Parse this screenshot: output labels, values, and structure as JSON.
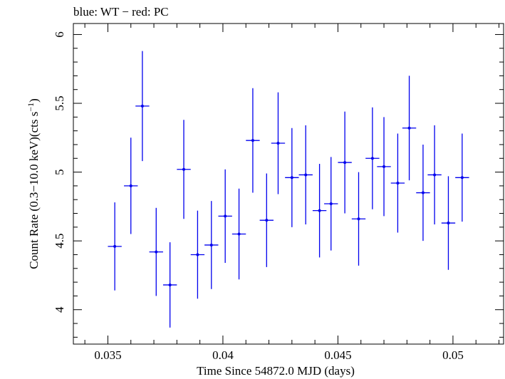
{
  "chart_data": {
    "type": "scatter",
    "title": "blue: WT − red: PC",
    "xlabel": "Time Since 54872.0 MJD (days)",
    "ylabel_main": "Count Rate (0.3−10.0 keV)(cts s",
    "ylabel_sup": "−1",
    "ylabel_end": ")",
    "xlim": [
      0.0335,
      0.0522
    ],
    "ylim": [
      3.75,
      6.08
    ],
    "xticks": [
      {
        "value": 0.035,
        "label": "0.035"
      },
      {
        "value": 0.04,
        "label": "0.04"
      },
      {
        "value": 0.045,
        "label": "0.045"
      },
      {
        "value": 0.05,
        "label": "0.05"
      }
    ],
    "yticks": [
      {
        "value": 4,
        "label": "4"
      },
      {
        "value": 4.5,
        "label": "4.5"
      },
      {
        "value": 5,
        "label": "5"
      },
      {
        "value": 5.5,
        "label": "5.5"
      },
      {
        "value": 6,
        "label": "6"
      }
    ],
    "grid": false,
    "series": [
      {
        "color": "#0000ee",
        "x_halfwidth": 0.0003,
        "points": [
          {
            "x": 0.0353,
            "y": 4.46,
            "yerr": 0.32
          },
          {
            "x": 0.036,
            "y": 4.9,
            "yerr": 0.35
          },
          {
            "x": 0.0365,
            "y": 5.48,
            "yerr": 0.4
          },
          {
            "x": 0.0371,
            "y": 4.42,
            "yerr": 0.32
          },
          {
            "x": 0.0377,
            "y": 4.18,
            "yerr": 0.31
          },
          {
            "x": 0.0383,
            "y": 5.02,
            "yerr": 0.36
          },
          {
            "x": 0.0389,
            "y": 4.4,
            "yerr": 0.32
          },
          {
            "x": 0.0395,
            "y": 4.47,
            "yerr": 0.32
          },
          {
            "x": 0.0401,
            "y": 4.68,
            "yerr": 0.34
          },
          {
            "x": 0.0407,
            "y": 4.55,
            "yerr": 0.33
          },
          {
            "x": 0.0413,
            "y": 5.23,
            "yerr": 0.38
          },
          {
            "x": 0.0419,
            "y": 4.65,
            "yerr": 0.34
          },
          {
            "x": 0.0424,
            "y": 5.21,
            "yerr": 0.37
          },
          {
            "x": 0.043,
            "y": 4.96,
            "yerr": 0.36
          },
          {
            "x": 0.0436,
            "y": 4.98,
            "yerr": 0.36
          },
          {
            "x": 0.0442,
            "y": 4.72,
            "yerr": 0.34
          },
          {
            "x": 0.0447,
            "y": 4.77,
            "yerr": 0.34
          },
          {
            "x": 0.0453,
            "y": 5.07,
            "yerr": 0.37
          },
          {
            "x": 0.0459,
            "y": 4.66,
            "yerr": 0.34
          },
          {
            "x": 0.0465,
            "y": 5.1,
            "yerr": 0.37
          },
          {
            "x": 0.047,
            "y": 5.04,
            "yerr": 0.36
          },
          {
            "x": 0.0476,
            "y": 4.92,
            "yerr": 0.36
          },
          {
            "x": 0.0481,
            "y": 5.32,
            "yerr": 0.38
          },
          {
            "x": 0.0487,
            "y": 4.85,
            "yerr": 0.35
          },
          {
            "x": 0.0492,
            "y": 4.98,
            "yerr": 0.36
          },
          {
            "x": 0.0498,
            "y": 4.63,
            "yerr": 0.34
          },
          {
            "x": 0.0504,
            "y": 4.96,
            "yerr": 0.32
          }
        ]
      }
    ]
  }
}
